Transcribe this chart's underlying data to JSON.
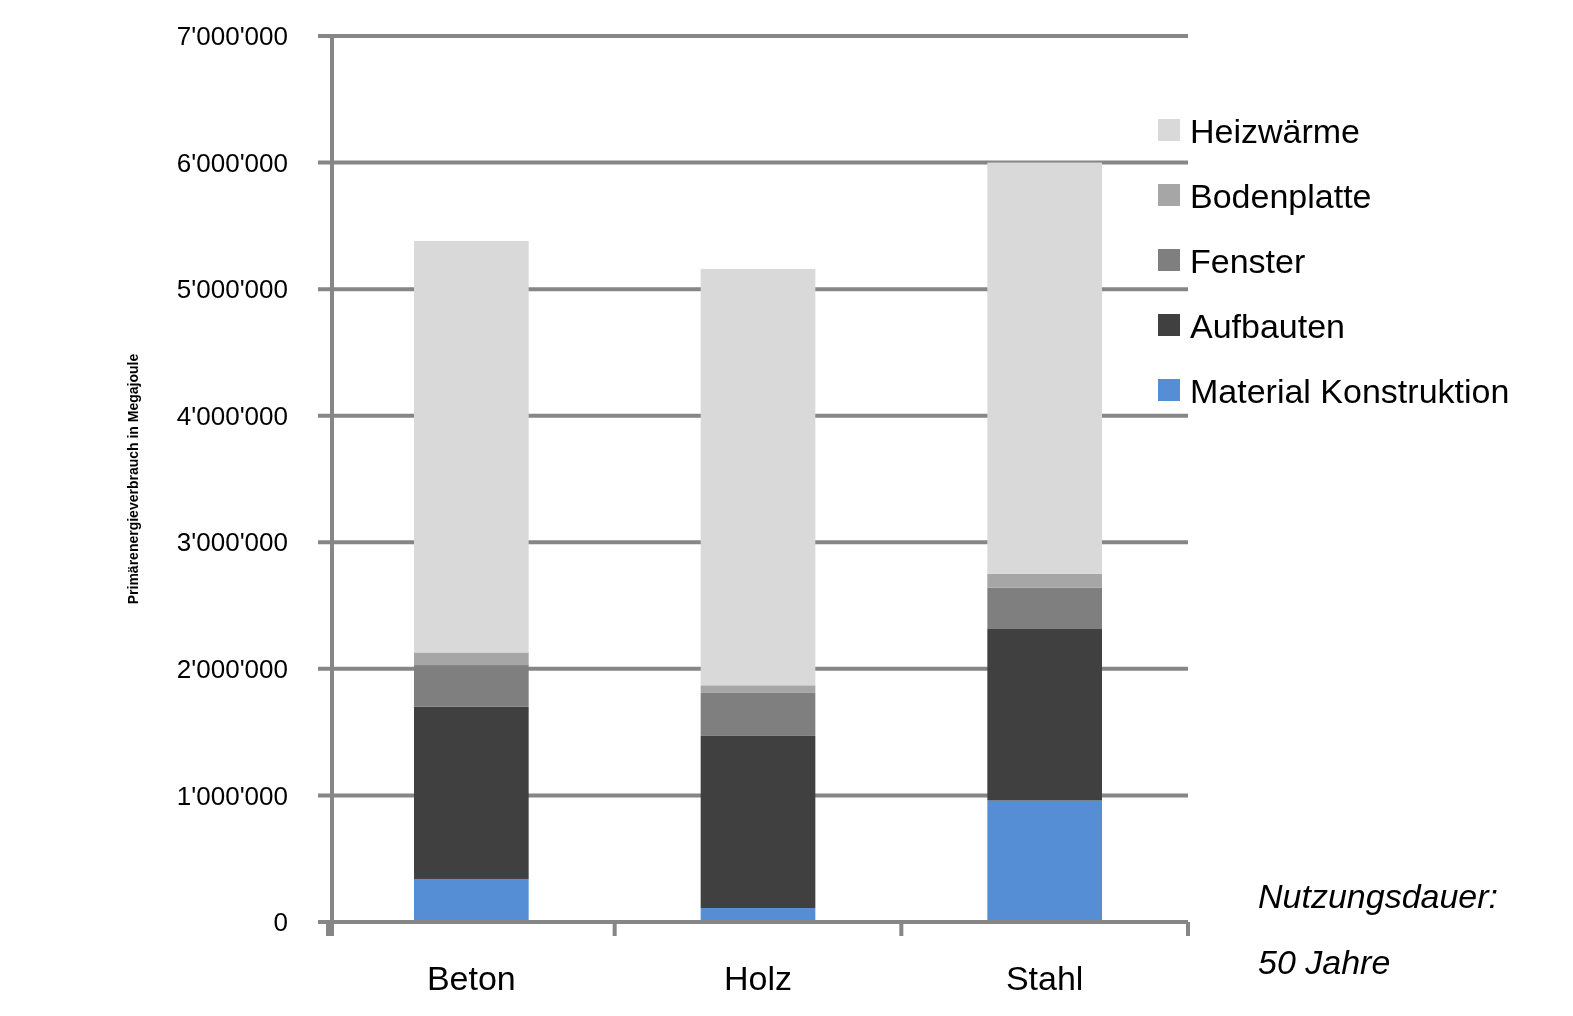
{
  "chart_data": {
    "type": "bar",
    "stacked": true,
    "ylabel": "Primärenergieverbrauch in Megajoule",
    "categories": [
      "Beton",
      "Holz",
      "Stahl"
    ],
    "series": [
      {
        "name": "Material Konstruktion",
        "color": "#558ed5",
        "values": [
          340000,
          110000,
          960000
        ]
      },
      {
        "name": "Aufbauten",
        "color": "#404040",
        "values": [
          1360000,
          1360000,
          1360000
        ]
      },
      {
        "name": "Fenster",
        "color": "#7f7f7f",
        "values": [
          330000,
          340000,
          320000
        ]
      },
      {
        "name": "Bodenplatte",
        "color": "#a6a6a6",
        "values": [
          100000,
          60000,
          110000
        ]
      },
      {
        "name": "Heizwärme",
        "color": "#d9d9d9",
        "values": [
          3250000,
          3290000,
          3250000
        ]
      }
    ],
    "ylim": [
      0,
      7000000
    ],
    "yticks": [
      {
        "value": 0,
        "label": "0"
      },
      {
        "value": 1000000,
        "label": "1'000'000"
      },
      {
        "value": 2000000,
        "label": "2'000'000"
      },
      {
        "value": 3000000,
        "label": "3'000'000"
      },
      {
        "value": 4000000,
        "label": "4'000'000"
      },
      {
        "value": 5000000,
        "label": "5'000'000"
      },
      {
        "value": 6000000,
        "label": "6'000'000"
      },
      {
        "value": 7000000,
        "label": "7'000'000"
      }
    ],
    "grid": "y",
    "legend": "right",
    "annotations": [
      "Nutzungsdauer:\n50 Jahre"
    ]
  }
}
